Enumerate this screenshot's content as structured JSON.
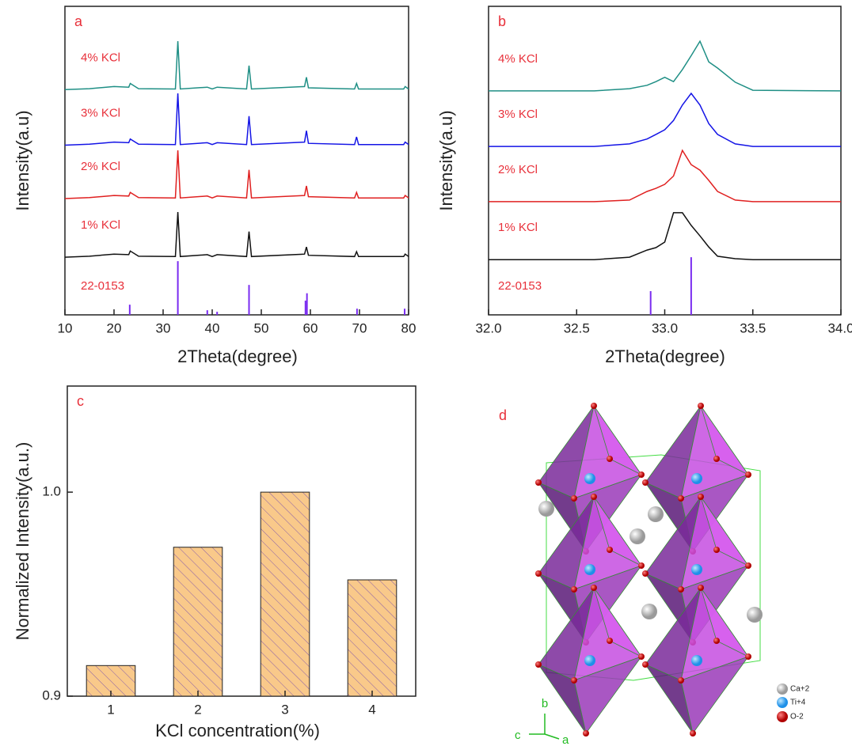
{
  "chart_data": [
    {
      "type": "line",
      "label": "a",
      "xlabel": "2Theta(degree)",
      "ylabel": "Intensity(a.u)",
      "xlim": [
        10,
        80
      ],
      "xticks": [
        10,
        20,
        30,
        40,
        50,
        60,
        70,
        80
      ],
      "ylim": [
        0,
        100
      ],
      "x": [
        10,
        15,
        20,
        23,
        23.3,
        25,
        32.5,
        33,
        33.5,
        39,
        40,
        41,
        47,
        47.5,
        48,
        58.8,
        59.2,
        59.6,
        69,
        69.4,
        69.8,
        79,
        79.3,
        80
      ],
      "series": [
        {
          "name": "4% KCl",
          "color": "#1f8f85",
          "values": [
            73,
            73.3,
            74,
            73.8,
            75,
            73.3,
            73.2,
            88.7,
            73.2,
            73.8,
            73.2,
            73.8,
            73.2,
            80.8,
            73.2,
            74,
            77,
            73.6,
            73.2,
            75,
            73.2,
            73.2,
            74,
            73.2
          ]
        },
        {
          "name": "3% KCl",
          "color": "#1414e6",
          "values": [
            55,
            55.3,
            56,
            55.8,
            57,
            55.3,
            55.2,
            71.8,
            55.2,
            55.8,
            55.2,
            55.8,
            55.2,
            64.4,
            55.2,
            56,
            59.7,
            55.6,
            55.2,
            57.7,
            55.2,
            55.2,
            56,
            55.2
          ]
        },
        {
          "name": "2% KCl",
          "color": "#e02020",
          "values": [
            37.7,
            38,
            38.7,
            38.5,
            39.7,
            38,
            37.9,
            53.3,
            37.9,
            38.5,
            37.9,
            38.5,
            37.9,
            47,
            37.9,
            38.7,
            41.8,
            38.3,
            37.9,
            39.7,
            37.9,
            37.9,
            38.7,
            37.9
          ]
        },
        {
          "name": "1% KCl",
          "color": "#111111",
          "values": [
            18.7,
            19,
            19.7,
            19.5,
            20.7,
            19,
            18.9,
            33.3,
            18.9,
            19.5,
            18.9,
            19.5,
            18.9,
            27,
            18.9,
            19.7,
            22,
            19.3,
            18.9,
            20.5,
            18.9,
            18.9,
            19.7,
            18.9
          ]
        }
      ],
      "reference": {
        "name": "22-0153",
        "color": "#7a2cf0",
        "x": [
          23.2,
          33,
          39,
          41,
          47.5,
          59,
          59.3,
          69.5,
          79.2
        ],
        "values": [
          3.3,
          17.4,
          1.5,
          1,
          9.7,
          4.6,
          7,
          2,
          2
        ]
      }
    },
    {
      "type": "line",
      "label": "b",
      "xlabel": "2Theta(degree)",
      "ylabel": "Intensity(a.u)",
      "xlim": [
        32,
        34
      ],
      "xticks": [
        {
          "value": 32,
          "label": "32.0"
        },
        32.5,
        {
          "value": 33,
          "label": "33.0"
        },
        33.5,
        {
          "value": 34,
          "label": "34.0"
        }
      ],
      "ylim": [
        0,
        100
      ],
      "x": [
        32,
        32.6,
        32.8,
        32.9,
        32.95,
        33,
        33.05,
        33.1,
        33.15,
        33.2,
        33.25,
        33.3,
        33.4,
        33.5,
        34
      ],
      "series": [
        {
          "name": "4% KCl",
          "color": "#1f8f85",
          "values": [
            72.6,
            72.6,
            73.3,
            74.4,
            75.6,
            77,
            75.6,
            79.5,
            84,
            88.7,
            82,
            80,
            75.4,
            72.8,
            72.6
          ]
        },
        {
          "name": "3% KCl",
          "color": "#1414e6",
          "values": [
            54.6,
            54.6,
            55.4,
            57,
            58.5,
            60,
            63,
            68,
            71.8,
            68,
            62,
            58.5,
            55.4,
            54.6,
            54.6
          ]
        },
        {
          "name": "2% KCl",
          "color": "#e02020",
          "values": [
            36.7,
            36.7,
            37.2,
            40,
            41,
            42.3,
            45,
            53.3,
            48.7,
            46.9,
            43.6,
            40,
            37.2,
            36.7,
            36.7
          ]
        },
        {
          "name": "1% KCl",
          "color": "#111111",
          "values": [
            17.9,
            17.9,
            18.7,
            21,
            21.8,
            23.6,
            33.1,
            33.1,
            29,
            25.6,
            22,
            19,
            18.2,
            17.9,
            17.9
          ]
        }
      ],
      "reference": {
        "name": "22-0153",
        "color": "#7a2cf0",
        "x": [
          32.92,
          33.15
        ],
        "values": [
          7.7,
          18.7
        ]
      }
    },
    {
      "type": "bar",
      "label": "c",
      "xlabel": "KCl concentration(%)",
      "ylabel": "Normalized Intensity(a.u.)",
      "categories": [
        "1",
        "2",
        "3",
        "4"
      ],
      "values": [
        0.915,
        0.973,
        1.0,
        0.957
      ],
      "color": "#f9c98a",
      "ylim": [
        0.9,
        1.052
      ],
      "yticks": [
        0.9,
        {
          "value": 1,
          "label": "1.0"
        }
      ]
    }
  ],
  "structure": {
    "label": "d",
    "legend": [
      "Ca+2",
      "Ti+4",
      "O-2"
    ],
    "axes": [
      "b",
      "c",
      "a"
    ]
  }
}
